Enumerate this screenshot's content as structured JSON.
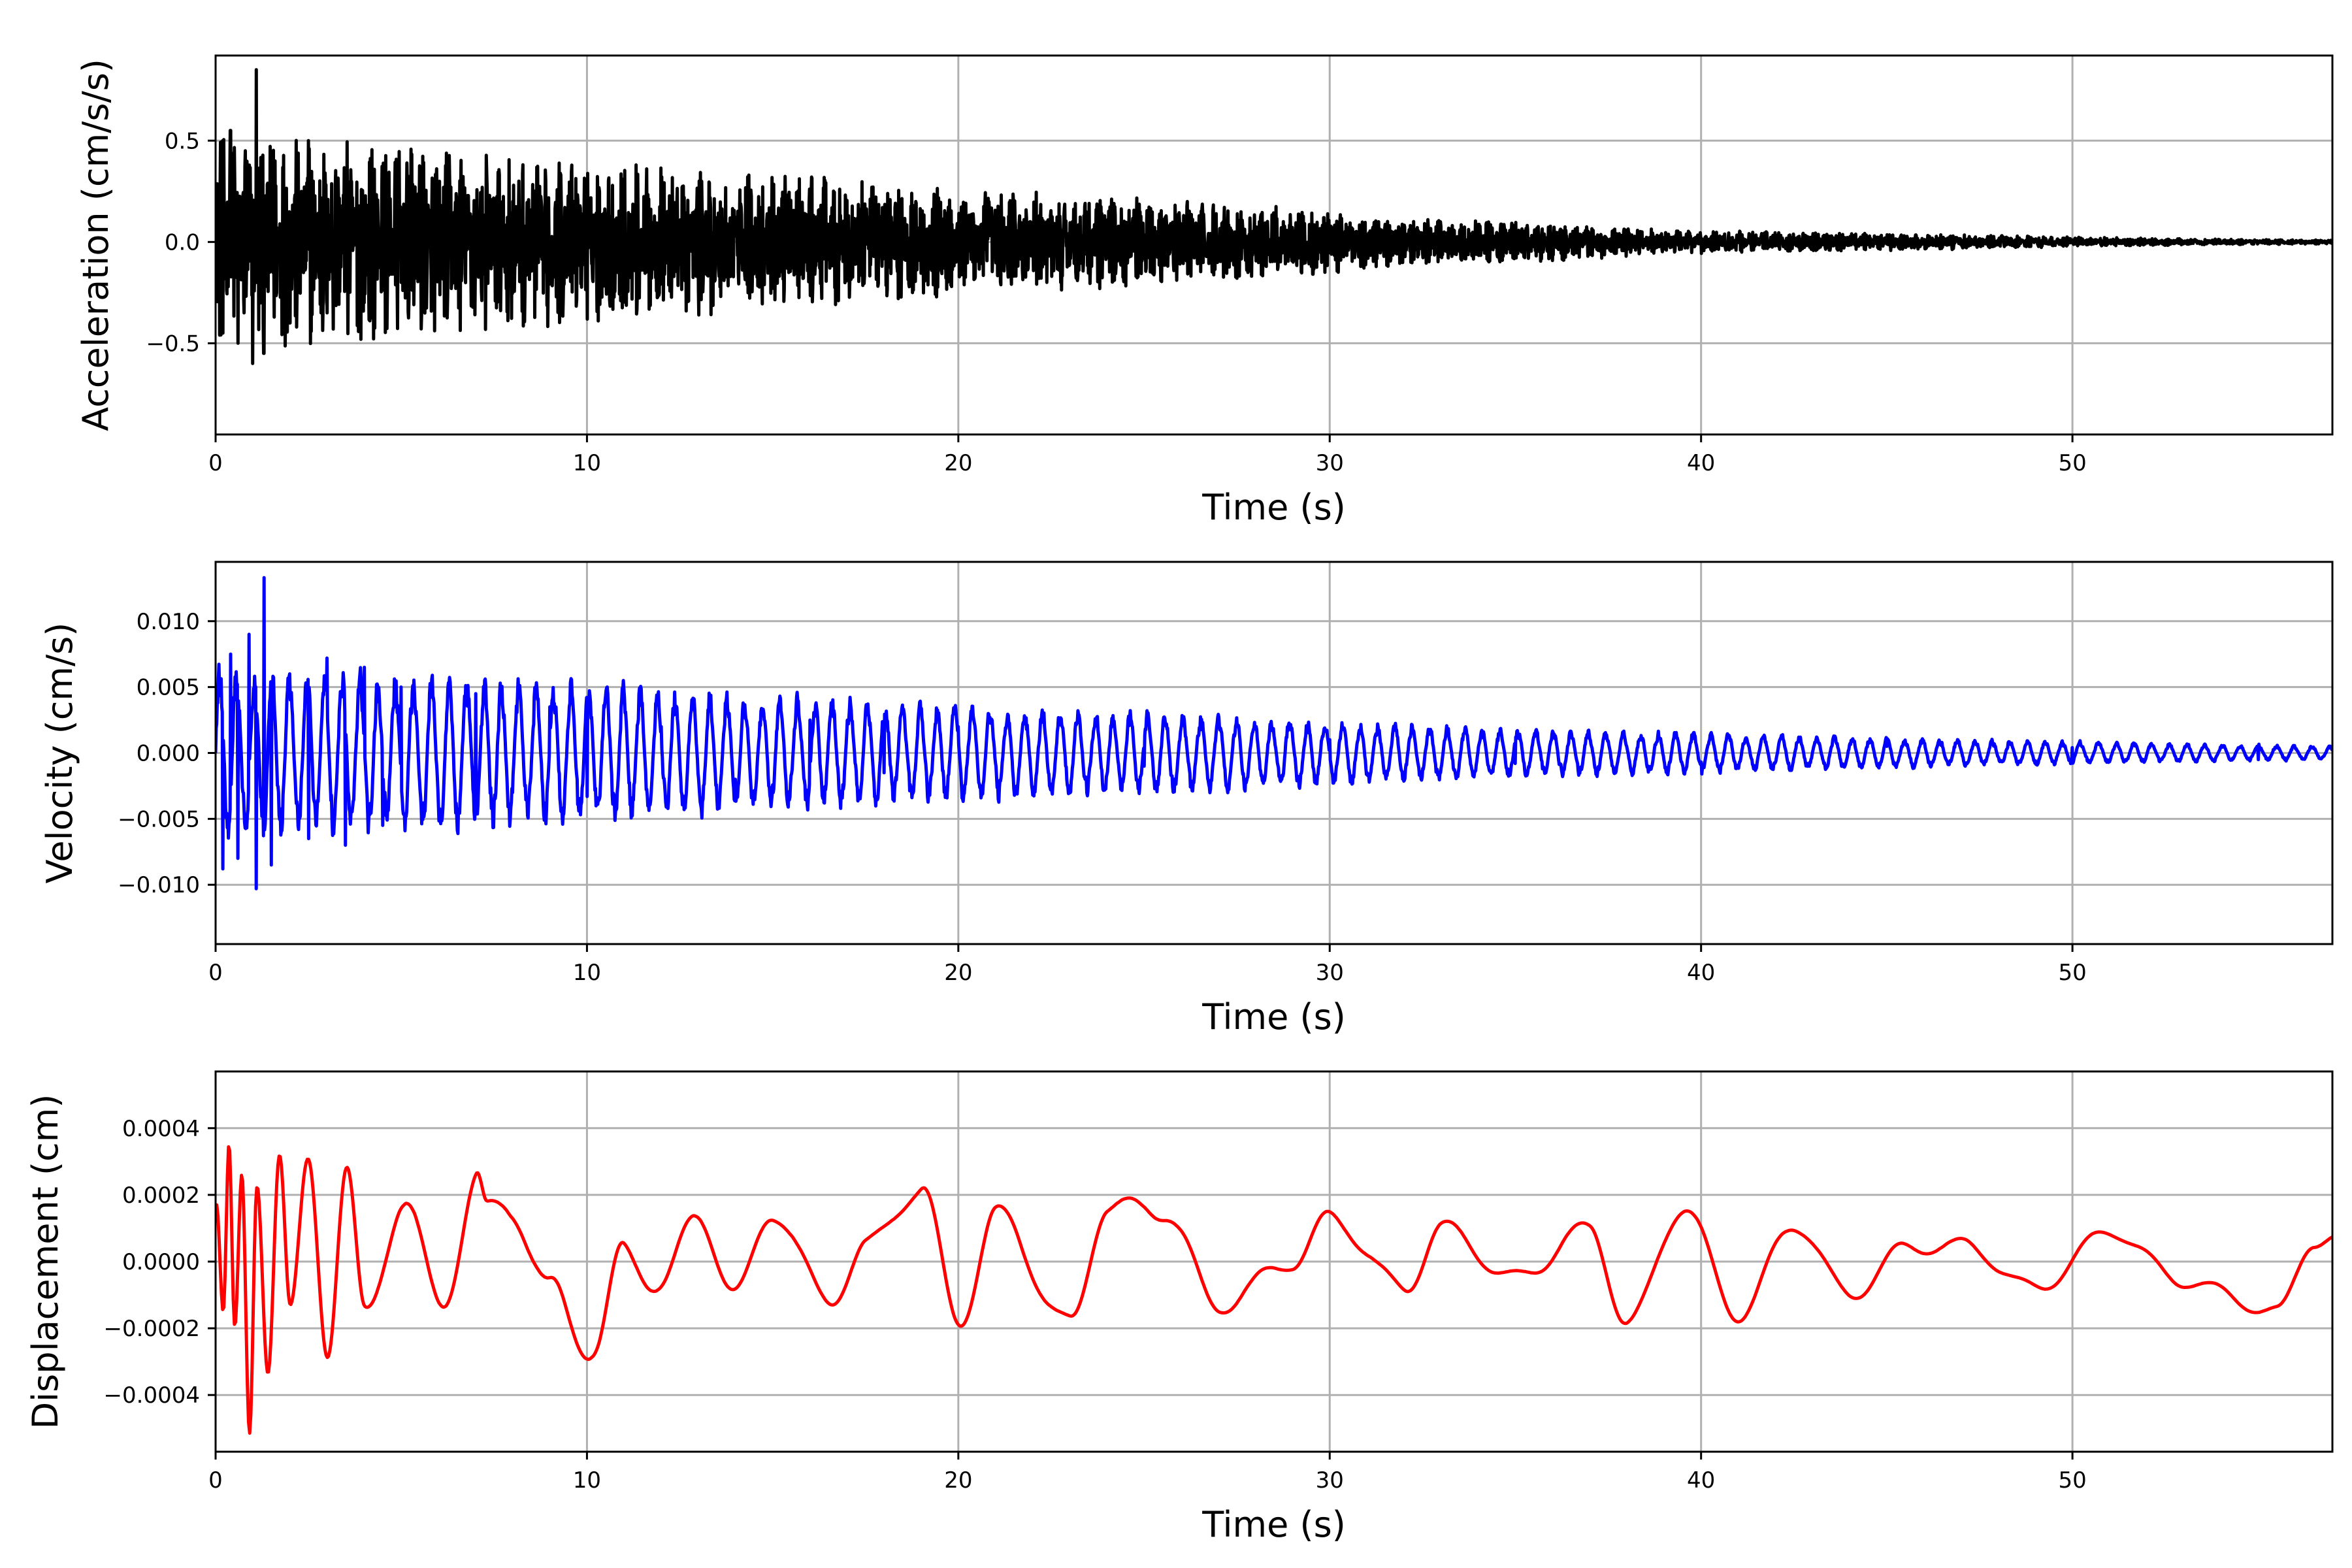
{
  "chart_data": [
    {
      "type": "line",
      "xlabel": "Time (s)",
      "ylabel": "Acceleration (cm/s/s)",
      "xlim": [
        0,
        57
      ],
      "ylim": [
        -0.95,
        0.92
      ],
      "xticks": [
        0,
        10,
        20,
        30,
        40,
        50
      ],
      "xtick_labels": [
        "0",
        "10",
        "20",
        "30",
        "40",
        "50"
      ],
      "yticks": [
        -0.5,
        0.0,
        0.5
      ],
      "ytick_labels": [
        "−0.5",
        "0.0",
        "0.5"
      ],
      "grid": true,
      "color": "#000000",
      "series": [
        {
          "x": [
            0,
            0.2,
            0.4,
            0.6,
            0.8,
            1.0,
            1.1,
            1.3,
            1.6,
            2.0,
            2.5,
            3.0,
            3.5,
            4.0,
            4.5,
            5.0,
            6.0,
            7.0,
            8.0,
            9.0,
            10.0,
            12.0,
            14.0,
            16.0,
            18.0,
            20.0,
            22.0,
            25.0,
            28.0,
            30.0,
            32.0,
            35.0,
            40.0,
            45.0,
            50.0,
            57.0
          ],
          "y": [
            0.25,
            -0.45,
            0.55,
            -0.5,
            0.45,
            -0.6,
            0.85,
            -0.55,
            0.4,
            -0.4,
            0.5,
            -0.35,
            0.3,
            -0.3,
            0.25,
            -0.2,
            0.18,
            -0.15,
            0.2,
            -0.15,
            0.1,
            -0.1,
            0.1,
            -0.08,
            0.06,
            -0.06,
            0.05,
            -0.04,
            0.04,
            -0.03,
            0.04,
            -0.02,
            0.015,
            -0.01,
            0.01,
            0.0
          ],
          "envelope": [
            0.55,
            0.5,
            0.45,
            0.4,
            0.35,
            0.3,
            0.26,
            0.22,
            0.18,
            0.12,
            0.1,
            0.06,
            0.05,
            0.04,
            0.025,
            0.015,
            0.01
          ]
        }
      ]
    },
    {
      "type": "line",
      "xlabel": "Time (s)",
      "ylabel": "Velocity (cm/s)",
      "xlim": [
        0,
        57
      ],
      "ylim": [
        -0.0145,
        0.0145
      ],
      "xticks": [
        0,
        10,
        20,
        30,
        40,
        50
      ],
      "xtick_labels": [
        "0",
        "10",
        "20",
        "30",
        "40",
        "50"
      ],
      "yticks": [
        -0.01,
        -0.005,
        0.0,
        0.005,
        0.01
      ],
      "ytick_labels": [
        "−0.010",
        "−0.005",
        "0.000",
        "0.005",
        "0.010"
      ],
      "grid": true,
      "color": "#0000ff",
      "series": [
        {
          "x": [
            0,
            0.2,
            0.4,
            0.6,
            0.9,
            1.1,
            1.3,
            1.5,
            2.0,
            2.5,
            3.0,
            3.5,
            4.0,
            4.5,
            5.0,
            6.0,
            7.0,
            8.0,
            9.0,
            10.0,
            12.0,
            14.0,
            16.0,
            18.0,
            20.0,
            25.0,
            30.0,
            35.0,
            40.0,
            45.0,
            50.0,
            55.0,
            57.0
          ],
          "y": [
            0.0,
            -0.0088,
            0.0075,
            -0.008,
            0.009,
            -0.0103,
            0.0133,
            -0.0085,
            0.006,
            -0.0065,
            0.0072,
            -0.007,
            0.0065,
            -0.0055,
            0.005,
            -0.004,
            0.0045,
            -0.003,
            0.0035,
            -0.0033,
            0.002,
            -0.002,
            0.0025,
            -0.0015,
            0.002,
            -0.001,
            0.001,
            -0.0008,
            -0.0007,
            0.0005,
            0.0004,
            -0.0005,
            0.0002
          ],
          "envelope": [
            0.0075,
            0.007,
            0.0065,
            0.006,
            0.005,
            0.0045,
            0.004,
            0.0035,
            0.003,
            0.0025,
            0.002,
            0.0018,
            0.0015,
            0.0012,
            0.001,
            0.0008,
            0.0006
          ]
        }
      ]
    },
    {
      "type": "line",
      "xlabel": "Time (s)",
      "ylabel": "Displacement (cm)",
      "xlim": [
        0,
        57
      ],
      "ylim": [
        -0.00057,
        0.00057
      ],
      "xticks": [
        0,
        10,
        20,
        30,
        40,
        50
      ],
      "xtick_labels": [
        "0",
        "10",
        "20",
        "30",
        "40",
        "50"
      ],
      "yticks": [
        -0.0004,
        -0.0002,
        0.0,
        0.0002,
        0.0004
      ],
      "ytick_labels": [
        "−0.0004",
        "−0.0002",
        "0.0000",
        "0.0002",
        "0.0004"
      ],
      "grid": true,
      "color": "#ff0000",
      "series": [
        {
          "x": [
            0,
            0.2,
            0.35,
            0.5,
            0.7,
            0.9,
            1.1,
            1.4,
            1.7,
            2.0,
            2.5,
            3.0,
            3.5,
            4.0,
            5.0,
            6.0,
            7.0,
            7.3,
            8.0,
            9.0,
            10.2,
            11.0,
            12.0,
            13.0,
            14.0,
            15.0,
            16.5,
            17.5,
            19.0,
            20.0,
            21.0,
            23.0,
            24.0,
            25.5,
            27.0,
            29.0,
            30.0,
            32.0,
            33.0,
            35.0,
            37.0,
            38.0,
            39.5,
            41.0,
            42.5,
            44.0,
            45.5,
            47.0,
            49.0,
            51.0,
            53.0,
            55.5,
            56.5,
            57.0
          ],
          "y": [
            0.00019,
            -0.00022,
            0.00031,
            -0.00029,
            0.00025,
            -0.00052,
            0.00031,
            -0.00028,
            0.00033,
            -0.0002,
            0.00029,
            -0.00022,
            0.00027,
            -0.0002,
            0.00021,
            -0.00015,
            0.00025,
            0.00012,
            0.00017,
            -0.0001,
            -0.00026,
            3e-05,
            -7e-05,
            0.00014,
            -0.0001,
            0.00015,
            -0.00012,
            5e-05,
            0.00022,
            -0.00018,
            0.00014,
            -0.00019,
            0.00017,
            0.00015,
            -0.00013,
            0.0,
            0.00013,
            -8e-05,
            0.0001,
            -5e-05,
            0.0001,
            -0.00019,
            0.00016,
            -0.00016,
            0.00011,
            -0.0001,
            4e-05,
            5e-05,
            -8e-05,
            9e-05,
            -6e-05,
            -0.00015,
            6e-05,
            7e-05
          ],
          "envelope": [
            0.0003,
            0.00028,
            0.00025,
            0.00018,
            0.00012,
            0.0001,
            0.00012,
            0.00011,
            0.0001,
            0.0001,
            9e-05,
            9e-05,
            8e-05,
            8e-05,
            7e-05,
            7e-05,
            7e-05
          ]
        }
      ]
    }
  ]
}
